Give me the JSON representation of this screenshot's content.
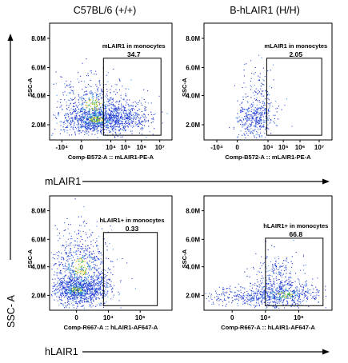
{
  "column_titles": [
    "C57BL/6 (+/+)",
    "B-hLAIR1 (H/H)"
  ],
  "row_axis_labels": [
    "mLAIR1",
    "hLAIR1"
  ],
  "y_axis_label": "SSC- A",
  "chart_data": [
    {
      "type": "scatter",
      "title": "",
      "ylabel": "SSC-A",
      "xlabel": "Comp-B572-A :: mLAIR1-PE-A",
      "x_ticks": [
        "-10⁴",
        "0",
        "10⁴",
        "10⁵",
        "10⁶",
        "10⁷"
      ],
      "y_ticks": [
        "2.0M",
        "4.0M",
        "6.0M",
        "8.0M"
      ],
      "ylim": [
        0,
        9000000
      ],
      "gate": {
        "name": "mLAIR1 in monocytes",
        "value": "34.7"
      },
      "density": "high"
    },
    {
      "type": "scatter",
      "title": "",
      "ylabel": "SSC-A",
      "xlabel": "Comp-B572-A :: mLAIR1-PE-A",
      "x_ticks": [
        "-10⁴",
        "0",
        "10⁴",
        "10⁵",
        "10⁶",
        "10⁷"
      ],
      "y_ticks": [
        "2.0M",
        "4.0M",
        "6.0M",
        "8.0M"
      ],
      "ylim": [
        0,
        9000000
      ],
      "gate": {
        "name": "mLAIR1 in monocytes",
        "value": "2.05"
      },
      "density": "low"
    },
    {
      "type": "scatter",
      "title": "",
      "ylabel": "SSC-A",
      "xlabel": "Comp-R667-A :: hLAIR1-AF647-A",
      "x_ticks": [
        "0",
        "10⁴",
        "10⁶"
      ],
      "y_ticks": [
        "2.0M",
        "4.0M",
        "6.0M",
        "8.0M"
      ],
      "ylim": [
        0,
        9000000
      ],
      "gate": {
        "name": "hLAIR1+ in monocytes",
        "value": "0.33"
      },
      "density": "high"
    },
    {
      "type": "scatter",
      "title": "",
      "ylabel": "SSC-A",
      "xlabel": "Comp-R667-A :: hLAIR1-AF647-A",
      "x_ticks": [
        "0",
        "10⁴",
        "10⁶"
      ],
      "y_ticks": [
        "2.0M",
        "4.0M",
        "6.0M",
        "8.0M"
      ],
      "ylim": [
        0,
        9000000
      ],
      "gate": {
        "name": "hLAIR1+ in monocytes",
        "value": "66.8"
      },
      "density": "low"
    }
  ]
}
